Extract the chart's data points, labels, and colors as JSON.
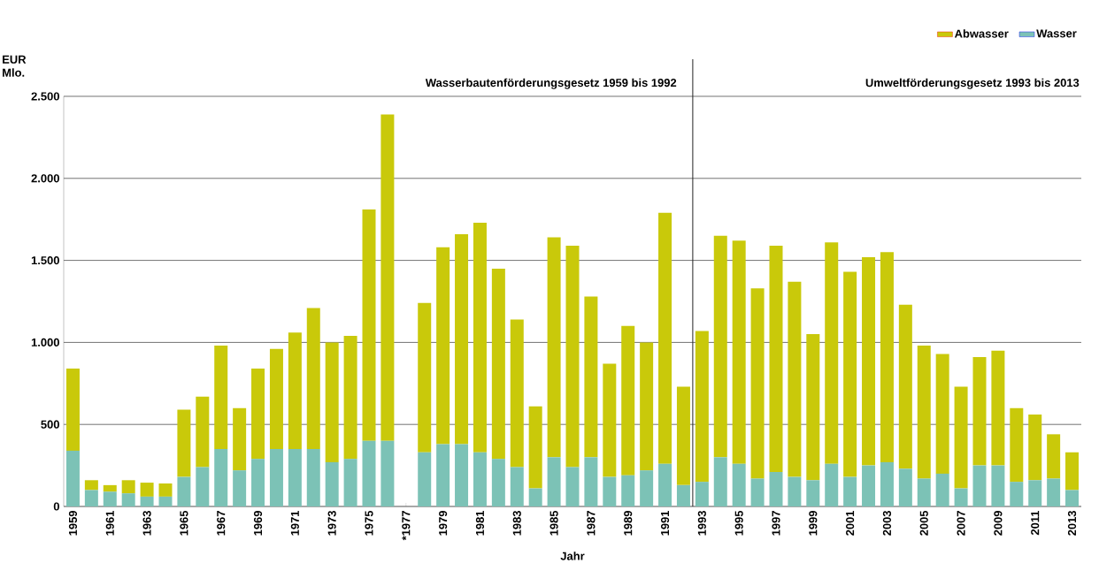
{
  "chart_data": {
    "type": "bar",
    "stacked": true,
    "ylabel": "EUR Mlo.",
    "xlabel": "Jahr",
    "x": [
      1959,
      1960,
      1961,
      1962,
      1963,
      1964,
      1965,
      1966,
      1967,
      1968,
      1969,
      1970,
      1971,
      1972,
      1973,
      1974,
      1975,
      1976,
      1977,
      1978,
      1979,
      1980,
      1981,
      1982,
      1983,
      1984,
      1985,
      1986,
      1987,
      1988,
      1989,
      1990,
      1991,
      1992,
      1993,
      1994,
      1995,
      1996,
      1997,
      1998,
      1999,
      2000,
      2001,
      2002,
      2003,
      2004,
      2005,
      2006,
      2007,
      2008,
      2009,
      2010,
      2011,
      2012,
      2013
    ],
    "series": [
      {
        "name": "Wasser",
        "color": "#7cc2b6",
        "values": [
          340,
          100,
          90,
          80,
          60,
          60,
          180,
          240,
          350,
          220,
          290,
          350,
          350,
          350,
          270,
          290,
          400,
          400,
          null,
          330,
          380,
          380,
          330,
          290,
          240,
          110,
          300,
          240,
          300,
          180,
          190,
          220,
          260,
          130,
          150,
          300,
          260,
          170,
          210,
          180,
          160,
          260,
          180,
          250,
          270,
          230,
          170,
          200,
          110,
          250,
          250,
          150,
          160,
          170,
          100
        ]
      },
      {
        "name": "Abwasser",
        "color": "#c9c90a",
        "values": [
          500,
          60,
          40,
          80,
          85,
          80,
          410,
          430,
          630,
          380,
          550,
          610,
          710,
          860,
          730,
          750,
          1410,
          1990,
          null,
          910,
          1200,
          1280,
          1400,
          1160,
          900,
          500,
          1340,
          1350,
          980,
          690,
          910,
          780,
          1530,
          600,
          920,
          1350,
          1360,
          1160,
          1380,
          1190,
          890,
          1350,
          1250,
          1270,
          1280,
          1000,
          810,
          730,
          620,
          660,
          700,
          450,
          400,
          270,
          230
        ]
      }
    ],
    "xlim": [
      1958.5,
      2013.5
    ],
    "xticks": [
      1959,
      1961,
      1963,
      1965,
      1967,
      1969,
      1971,
      1973,
      1975,
      {
        "value": 1977,
        "label": "*1977"
      },
      1979,
      1981,
      1983,
      1985,
      1987,
      1989,
      1991,
      1993,
      1995,
      1997,
      1999,
      2001,
      2003,
      2005,
      2007,
      2009,
      2011,
      2013
    ],
    "ylim": [
      0,
      2500
    ],
    "yticks": [
      0,
      {
        "value": 500,
        "label": "500"
      },
      {
        "value": 1000,
        "label": "1.000"
      },
      {
        "value": 1500,
        "label": "1.500"
      },
      {
        "value": 2000,
        "label": "2.000"
      },
      {
        "value": 2500,
        "label": "2.500"
      }
    ],
    "grid": "y",
    "legend": "top right",
    "ref_lines": [
      {
        "axis": "x",
        "value": 1992.5,
        "color": "#222222"
      }
    ],
    "annotations": [
      "Wasserbautenförderungsgesetz 1959 bis 1992",
      "Umweltförderungsgesetz 1993 bis 2013"
    ]
  }
}
